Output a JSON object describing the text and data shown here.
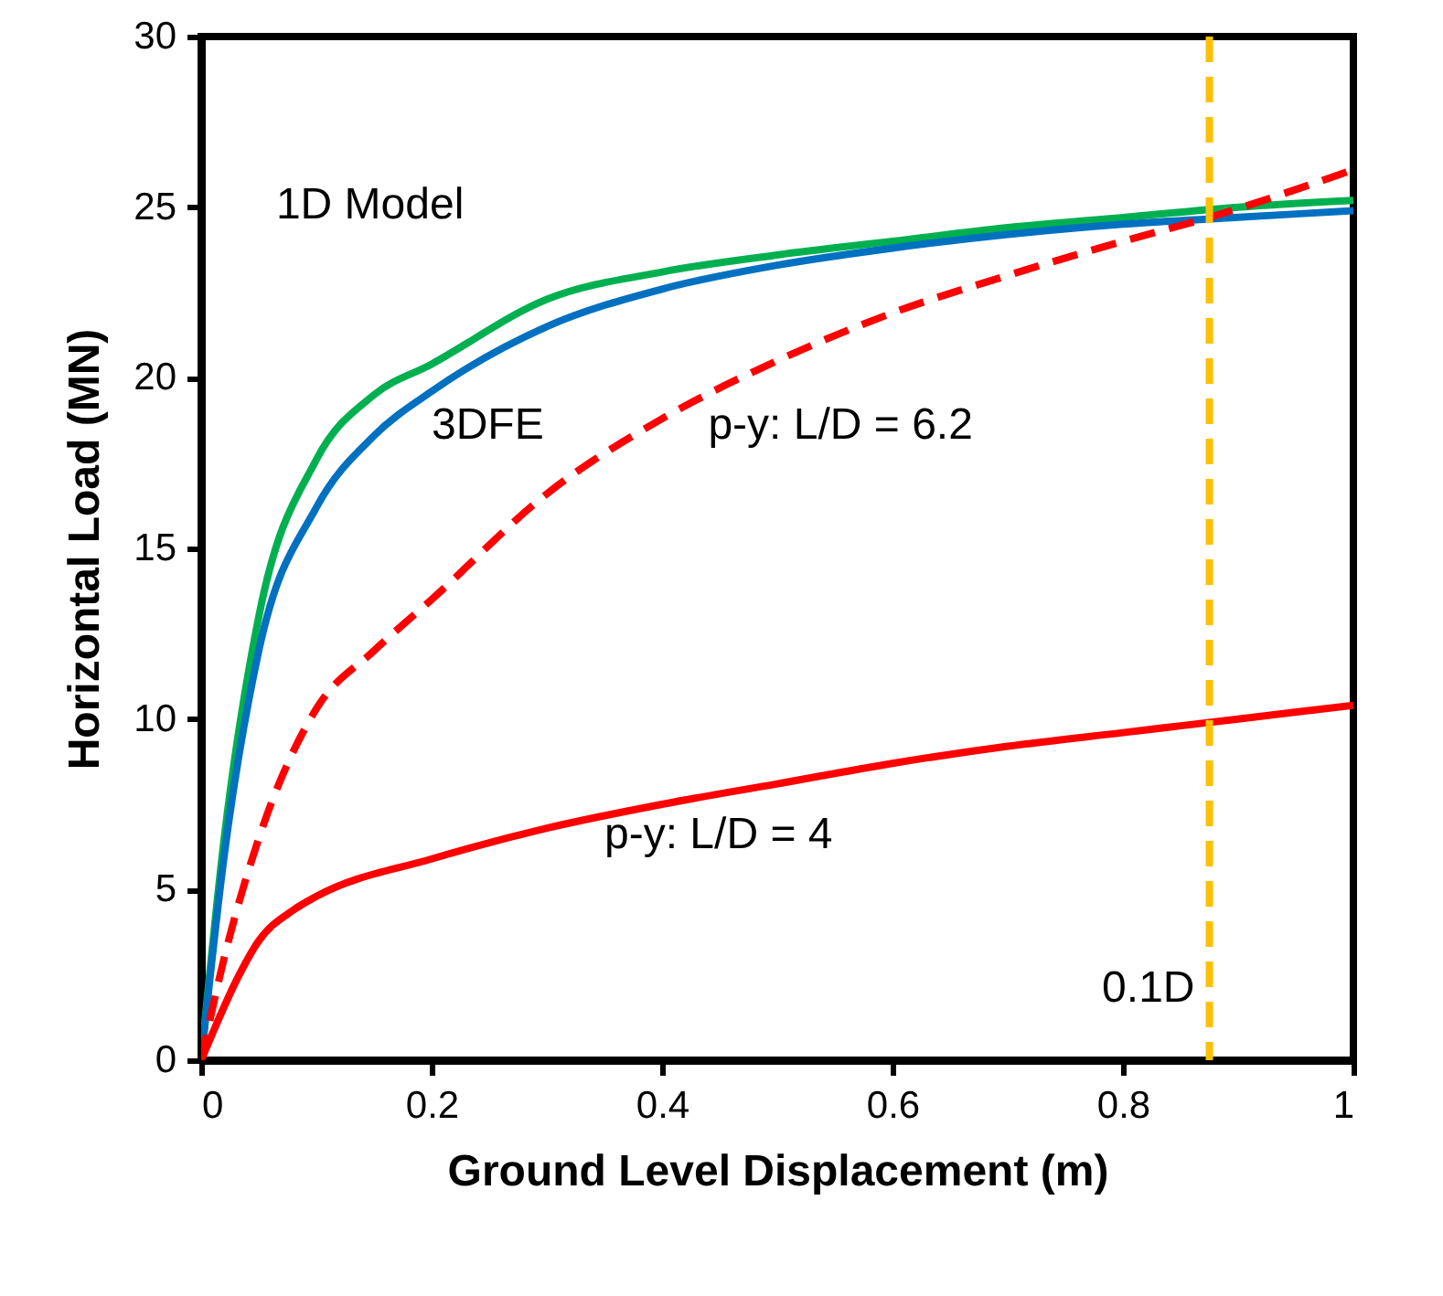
{
  "chart_data": {
    "type": "line",
    "xlabel": "Ground Level Displacement (m)",
    "ylabel": "Horizontal Load (MN)",
    "xlim": [
      0,
      1
    ],
    "xticks": [
      0,
      0.2,
      0.4,
      0.6,
      0.8,
      1
    ],
    "ylim": [
      0,
      30
    ],
    "yticks": [
      0,
      5,
      10,
      15,
      20,
      25,
      30
    ],
    "grid": false,
    "marker": "none",
    "series": [
      {
        "name": "1D Model",
        "color": "#00b050",
        "line_style": "solid",
        "x": [
          0,
          0.02,
          0.05,
          0.1,
          0.15,
          0.2,
          0.3,
          0.4,
          0.5,
          0.6,
          0.7,
          0.8,
          0.9,
          1
        ],
        "values": [
          0,
          6.5,
          13,
          17.6,
          19.5,
          20.4,
          22.3,
          23.1,
          23.6,
          24.0,
          24.4,
          24.7,
          25.0,
          25.2
        ]
      },
      {
        "name": "3DFE",
        "color": "#0070c0",
        "line_style": "solid",
        "x": [
          0,
          0.02,
          0.05,
          0.1,
          0.15,
          0.2,
          0.3,
          0.4,
          0.5,
          0.6,
          0.7,
          0.8,
          0.9,
          1
        ],
        "values": [
          0,
          6,
          12,
          16.2,
          18.3,
          19.6,
          21.5,
          22.6,
          23.3,
          23.8,
          24.2,
          24.5,
          24.7,
          24.9
        ]
      },
      {
        "name": "p-y: L/D = 6.2",
        "color": "#ff0000",
        "line_style": "dashed",
        "x": [
          0,
          0.02,
          0.05,
          0.1,
          0.15,
          0.2,
          0.3,
          0.4,
          0.5,
          0.6,
          0.7,
          0.8,
          0.875,
          1
        ],
        "values": [
          0,
          3,
          6.5,
          10.3,
          12,
          13.5,
          16.6,
          18.8,
          20.5,
          21.9,
          23.0,
          24.0,
          24.7,
          26.1
        ]
      },
      {
        "name": "p-y: L/D = 4",
        "color": "#ff0000",
        "line_style": "solid",
        "x": [
          0,
          0.01,
          0.03,
          0.05,
          0.08,
          0.1,
          0.2,
          0.3,
          0.4,
          0.5,
          0.6,
          0.7,
          0.8,
          0.9,
          1
        ],
        "values": [
          0,
          0.8,
          2.3,
          3.5,
          4.4,
          4.8,
          5.9,
          6.8,
          7.5,
          8.1,
          8.7,
          9.2,
          9.6,
          10.0,
          10.4
        ]
      }
    ],
    "ref_lines": [
      {
        "axis": "x",
        "value": 0.875,
        "label": "0.1D",
        "color": "#ffc000",
        "line_style": "dashed"
      }
    ]
  }
}
